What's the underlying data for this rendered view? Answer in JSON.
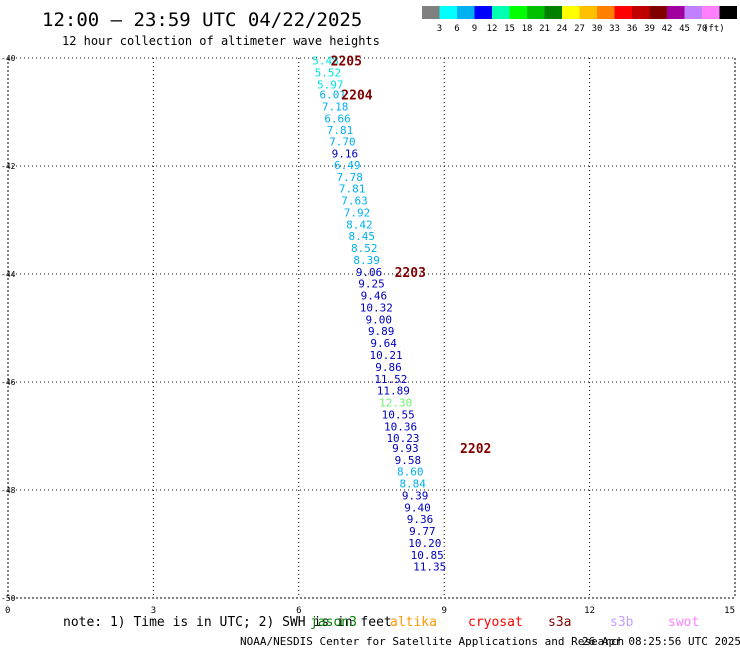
{
  "header": {
    "title": "12:00 – 23:59 UTC 04/22/2025",
    "subtitle": "12 hour collection of altimeter wave heights"
  },
  "legend": {
    "swatch_colors": [
      "#808080",
      "#00ffff",
      "#00b0f0",
      "#0000ff",
      "#00ffb0",
      "#00ff00",
      "#00c000",
      "#008000",
      "#ffff00",
      "#ffc000",
      "#ff8000",
      "#ff0000",
      "#c00000",
      "#800000",
      "#a000a0",
      "#c080ff",
      "#ff80ff",
      "#000000"
    ],
    "labels": [
      "3",
      "6",
      "9",
      "12",
      "15",
      "18",
      "21",
      "24",
      "27",
      "30",
      "33",
      "36",
      "39",
      "42",
      "45",
      "70"
    ],
    "unit": "(ft)"
  },
  "chart_data": {
    "type": "scatter",
    "title": "12:00 – 23:59 UTC 04/22/2025",
    "subtitle": "12 hour collection of altimeter wave heights",
    "xlabel": "",
    "ylabel": "",
    "xlim": [
      0,
      15
    ],
    "ylim": [
      -50,
      -40
    ],
    "x_ticks": [
      0,
      3,
      6,
      9,
      12,
      15
    ],
    "y_ticks": [
      -40,
      -42,
      -44,
      -46,
      -48,
      -50
    ],
    "x_tick_labels": [
      "0",
      "3",
      "6",
      "9",
      "12",
      "15"
    ],
    "y_tick_labels": [
      "-40",
      "-42",
      "-44",
      "-46",
      "-48",
      "-50"
    ],
    "grid": true,
    "points": [
      {
        "x": 6.55,
        "y": -40.05,
        "label": "5.48",
        "color": "#00e0e0"
      },
      {
        "x": 6.6,
        "y": -40.27,
        "label": "5.52",
        "color": "#00e0e0"
      },
      {
        "x": 6.65,
        "y": -40.49,
        "label": "5.97",
        "color": "#00e0e0"
      },
      {
        "x": 6.7,
        "y": -40.68,
        "label": "6.01",
        "color": "#00b0f0"
      },
      {
        "x": 6.75,
        "y": -40.9,
        "label": "7.18",
        "color": "#00b0f0"
      },
      {
        "x": 6.8,
        "y": -41.12,
        "label": "6.66",
        "color": "#00b0f0"
      },
      {
        "x": 6.85,
        "y": -41.33,
        "label": "7.81",
        "color": "#00b0f0"
      },
      {
        "x": 6.9,
        "y": -41.55,
        "label": "7.70",
        "color": "#00b0f0"
      },
      {
        "x": 6.95,
        "y": -41.77,
        "label": "9.16",
        "color": "#0000c0"
      },
      {
        "x": 7.0,
        "y": -41.98,
        "label": "6.49",
        "color": "#00b0f0"
      },
      {
        "x": 7.05,
        "y": -42.2,
        "label": "7.78",
        "color": "#00b0f0"
      },
      {
        "x": 7.1,
        "y": -42.42,
        "label": "7.81",
        "color": "#00b0f0"
      },
      {
        "x": 7.15,
        "y": -42.64,
        "label": "7.63",
        "color": "#00b0f0"
      },
      {
        "x": 7.2,
        "y": -42.86,
        "label": "7.92",
        "color": "#00b0f0"
      },
      {
        "x": 7.25,
        "y": -43.08,
        "label": "8.42",
        "color": "#00b0f0"
      },
      {
        "x": 7.3,
        "y": -43.3,
        "label": "8.45",
        "color": "#00b0f0"
      },
      {
        "x": 7.35,
        "y": -43.52,
        "label": "8.52",
        "color": "#00b0f0"
      },
      {
        "x": 7.4,
        "y": -43.74,
        "label": "8.39",
        "color": "#00b0f0"
      },
      {
        "x": 7.45,
        "y": -43.96,
        "label": "9.06",
        "color": "#0000c0"
      },
      {
        "x": 7.5,
        "y": -44.18,
        "label": "9.25",
        "color": "#0000c0"
      },
      {
        "x": 7.55,
        "y": -44.4,
        "label": "9.46",
        "color": "#0000c0"
      },
      {
        "x": 7.6,
        "y": -44.62,
        "label": "10.32",
        "color": "#0000c0"
      },
      {
        "x": 7.65,
        "y": -44.84,
        "label": "9.00",
        "color": "#0000c0"
      },
      {
        "x": 7.7,
        "y": -45.06,
        "label": "9.89",
        "color": "#0000c0"
      },
      {
        "x": 7.75,
        "y": -45.28,
        "label": "9.64",
        "color": "#0000c0"
      },
      {
        "x": 7.8,
        "y": -45.5,
        "label": "10.21",
        "color": "#0000c0"
      },
      {
        "x": 7.85,
        "y": -45.72,
        "label": "9.86",
        "color": "#0000c0"
      },
      {
        "x": 7.9,
        "y": -45.94,
        "label": "11.52",
        "color": "#0000c0"
      },
      {
        "x": 7.95,
        "y": -46.16,
        "label": "11.89",
        "color": "#0000c0"
      },
      {
        "x": 8.0,
        "y": -46.38,
        "label": "12.30",
        "color": "#70f070"
      },
      {
        "x": 8.05,
        "y": -46.6,
        "label": "10.55",
        "color": "#0000c0"
      },
      {
        "x": 8.1,
        "y": -46.82,
        "label": "10.36",
        "color": "#0000c0"
      },
      {
        "x": 8.15,
        "y": -47.04,
        "label": "10.23",
        "color": "#0000c0"
      },
      {
        "x": 8.2,
        "y": -47.22,
        "label": "9.93",
        "color": "#0000c0"
      },
      {
        "x": 8.25,
        "y": -47.44,
        "label": "9.58",
        "color": "#0000c0"
      },
      {
        "x": 8.3,
        "y": -47.66,
        "label": "8.60",
        "color": "#00b0f0"
      },
      {
        "x": 8.35,
        "y": -47.88,
        "label": "8.84",
        "color": "#00b0f0"
      },
      {
        "x": 8.4,
        "y": -48.1,
        "label": "9.39",
        "color": "#0000c0"
      },
      {
        "x": 8.45,
        "y": -48.32,
        "label": "9.40",
        "color": "#0000c0"
      },
      {
        "x": 8.5,
        "y": -48.54,
        "label": "9.36",
        "color": "#0000c0"
      },
      {
        "x": 8.55,
        "y": -48.76,
        "label": "9.77",
        "color": "#0000c0"
      },
      {
        "x": 8.6,
        "y": -48.98,
        "label": "10.20",
        "color": "#0000c0"
      },
      {
        "x": 8.65,
        "y": -49.2,
        "label": "10.85",
        "color": "#0000c0"
      },
      {
        "x": 8.7,
        "y": -49.42,
        "label": "11.35",
        "color": "#0000c0"
      }
    ],
    "annotations": [
      {
        "x": 6.98,
        "y": -40.05,
        "text": "2205",
        "color": "#800000"
      },
      {
        "x": 7.2,
        "y": -40.68,
        "text": "2204",
        "color": "#800000"
      },
      {
        "x": 8.3,
        "y": -43.96,
        "text": "2203",
        "color": "#800000"
      },
      {
        "x": 9.65,
        "y": -47.22,
        "text": "2202",
        "color": "#800000"
      }
    ]
  },
  "footer": {
    "note": "note:  1) Time is in UTC; 2) SWH is in feet",
    "satellites": [
      {
        "name": "jason3",
        "color": "#008000"
      },
      {
        "name": "altika",
        "color": "#ff9900"
      },
      {
        "name": "cryosat",
        "color": "#ff0000"
      },
      {
        "name": "s3a",
        "color": "#800000"
      },
      {
        "name": "s3b",
        "color": "#c0a0ff"
      },
      {
        "name": "swot",
        "color": "#ff80ff"
      }
    ],
    "credit": "NOAA/NESDIS Center for Satellite Applications and Research",
    "timestamp": "26 Apr 08:25:56 UTC 2025"
  }
}
